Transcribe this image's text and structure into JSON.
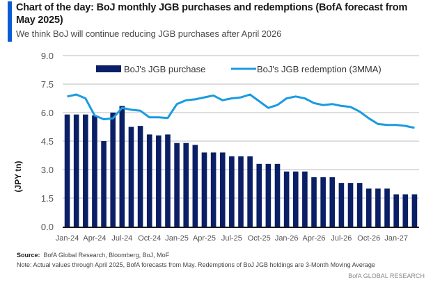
{
  "header": {
    "title": "Chart of the day:  BoJ monthly JGB purchases and redemptions (BofA forecast from May 2025)",
    "subtitle": "We think BoJ will continue reducing JGB purchases after April 2026"
  },
  "footer": {
    "source_label": "Source:",
    "source_text": "BofA Global Research, Bloomberg, BoJ, MoF",
    "note": "Note: Actual values through April 2025, BofA forecasts from May. Redemptions of BoJ JGB holdings are 3-Month Moving Average",
    "brand": "BofA GLOBAL RESEARCH"
  },
  "colors": {
    "accent": "#0a5bd6",
    "bar": "#0b1f66",
    "line": "#1a9be0",
    "grid": "#d4d4d4",
    "axis": "#1a1a1a"
  },
  "chart_data": {
    "type": "bar",
    "title": "BoJ monthly JGB purchases and redemptions (BofA forecast from May 2025)",
    "xlabel": "",
    "ylabel": "(JPY tn)",
    "ylim": [
      0,
      9
    ],
    "yticks": [
      "0.0",
      "1.5",
      "3.0",
      "4.5",
      "6.0",
      "7.5",
      "9.0"
    ],
    "ytick_values": [
      0,
      1.5,
      3.0,
      4.5,
      6.0,
      7.5,
      9.0
    ],
    "grid": true,
    "legend_position": "top",
    "categories": [
      "Jan-24",
      "Feb-24",
      "Mar-24",
      "Apr-24",
      "May-24",
      "Jun-24",
      "Jul-24",
      "Aug-24",
      "Sep-24",
      "Oct-24",
      "Nov-24",
      "Dec-24",
      "Jan-25",
      "Feb-25",
      "Mar-25",
      "Apr-25",
      "May-25",
      "Jun-25",
      "Jul-25",
      "Aug-25",
      "Sep-25",
      "Oct-25",
      "Nov-25",
      "Dec-25",
      "Jan-26",
      "Feb-26",
      "Mar-26",
      "Apr-26",
      "May-26",
      "Jun-26",
      "Jul-26",
      "Aug-26",
      "Sep-26",
      "Oct-26",
      "Nov-26",
      "Dec-26",
      "Jan-27",
      "Feb-27",
      "Mar-27"
    ],
    "xtick_labels": [
      "Jan-24",
      "Apr-24",
      "Jul-24",
      "Oct-24",
      "Jan-25",
      "Apr-25",
      "Jul-25",
      "Oct-25",
      "Jan-26",
      "Apr-26",
      "Jul-26",
      "Oct-26",
      "Jan-27"
    ],
    "series": [
      {
        "name": "BoJ's JGB purchase",
        "type": "bar",
        "values": [
          5.9,
          5.9,
          5.9,
          5.85,
          4.5,
          6.0,
          6.35,
          5.25,
          5.3,
          4.85,
          4.8,
          4.85,
          4.4,
          4.4,
          4.3,
          3.9,
          3.9,
          3.9,
          3.7,
          3.7,
          3.7,
          3.3,
          3.3,
          3.3,
          2.9,
          2.9,
          2.9,
          2.6,
          2.6,
          2.6,
          2.3,
          2.3,
          2.3,
          2.0,
          2.0,
          2.0,
          1.7,
          1.7,
          1.7
        ]
      },
      {
        "name": "BoJ's JGB redemption (3MMA)",
        "type": "line",
        "values": [
          6.85,
          6.95,
          6.75,
          5.85,
          5.65,
          5.7,
          6.25,
          6.15,
          6.1,
          5.75,
          5.75,
          5.72,
          6.45,
          6.65,
          6.7,
          6.8,
          6.9,
          6.65,
          6.75,
          6.8,
          6.95,
          6.6,
          6.25,
          6.4,
          6.75,
          6.85,
          6.75,
          6.5,
          6.4,
          6.45,
          6.35,
          6.3,
          6.05,
          5.7,
          5.4,
          5.35,
          5.35,
          5.3,
          5.2
        ]
      }
    ]
  }
}
